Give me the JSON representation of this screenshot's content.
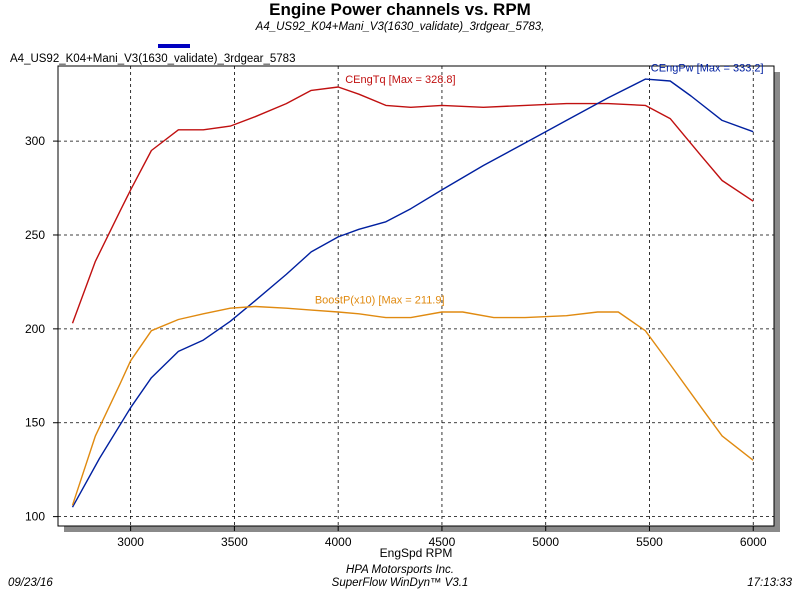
{
  "chart_data": {
    "type": "line",
    "title": "Engine Power channels vs. RPM",
    "subtitle": "A4_US92_K04+Mani_V3(1630_validate)_3rdgear_5783,",
    "legend_label": "A4_US92_K04+Mani_V3(1630_validate)_3rdgear_5783",
    "legend_color": "#0000c0",
    "xlabel": "EngSpd RPM",
    "ylabel": "",
    "xlim": [
      2650,
      6100
    ],
    "ylim": [
      95,
      340
    ],
    "x_ticks": [
      3000,
      3500,
      4000,
      4500,
      5000,
      5500,
      6000
    ],
    "y_ticks": [
      100,
      150,
      200,
      250,
      300
    ],
    "grid": true,
    "series": [
      {
        "name": "CEngTq [Max = 328.8]",
        "color": "#c01010",
        "x": [
          2720,
          2830,
          2950,
          3000,
          3100,
          3230,
          3350,
          3480,
          3600,
          3750,
          3870,
          4000,
          4100,
          4230,
          4350,
          4500,
          4700,
          4900,
          5100,
          5300,
          5480,
          5600,
          5750,
          5850,
          6000
        ],
        "values": [
          203,
          236,
          263,
          274,
          295,
          306,
          306,
          308,
          313,
          320,
          327,
          328.8,
          325,
          319,
          318,
          319,
          318,
          319,
          320,
          320,
          319,
          312,
          292,
          279,
          268
        ]
      },
      {
        "name": "CEngPw [Max = 333.2]",
        "color": "#0020a0",
        "x": [
          2720,
          2850,
          3000,
          3100,
          3230,
          3350,
          3480,
          3600,
          3750,
          3870,
          4000,
          4100,
          4230,
          4350,
          4500,
          4700,
          4900,
          5100,
          5300,
          5480,
          5600,
          5700,
          5850,
          6000
        ],
        "values": [
          105,
          131,
          158,
          174,
          188,
          194,
          204,
          215,
          229,
          241,
          249,
          253,
          257,
          264,
          274,
          287,
          299,
          311,
          323,
          333,
          332,
          324,
          311,
          305
        ]
      },
      {
        "name": "BoostP(x10) [Max = 211.9]",
        "color": "#e08a10",
        "x": [
          2720,
          2830,
          2950,
          3000,
          3100,
          3230,
          3350,
          3480,
          3600,
          3750,
          3870,
          4000,
          4100,
          4230,
          4350,
          4500,
          4600,
          4750,
          4900,
          5100,
          5250,
          5350,
          5480,
          5600,
          5750,
          5850,
          6000
        ],
        "values": [
          106,
          143,
          171,
          183,
          199,
          205,
          208,
          211,
          211.9,
          211,
          210,
          209,
          208,
          206,
          206,
          209,
          209,
          206,
          206,
          207,
          209,
          209,
          199,
          181,
          158,
          143,
          130
        ]
      }
    ],
    "annotations": [
      {
        "text": "CEngTq [Max = 328.8]",
        "x": 4300,
        "y": 331,
        "color": "#c01010",
        "anchor": "middle"
      },
      {
        "text": "CEngPw [Max = 333.2]",
        "x": 6050,
        "y": 337,
        "color": "#0020a0",
        "anchor": "end"
      },
      {
        "text": "BoostP(x10) [Max = 211.9]",
        "x": 4200,
        "y": 213.5,
        "color": "#e08a10",
        "anchor": "middle"
      }
    ]
  },
  "footer": {
    "date": "09/23/16",
    "company": "HPA Motorsports Inc.",
    "software": "SuperFlow WinDyn™ V3.1",
    "time": "17:13:33"
  }
}
